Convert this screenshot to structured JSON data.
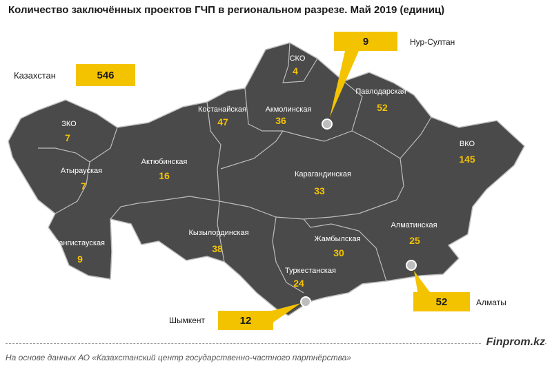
{
  "title": "Количество заключённых проектов ГЧП в региональном разрезе. Май 2019 (единиц)",
  "total": {
    "label": "Казахстан",
    "value": "546"
  },
  "regions": [
    {
      "name": "СКО",
      "value": "4"
    },
    {
      "name": "ЗКО",
      "value": "7"
    },
    {
      "name": "Костанайская",
      "value": "47"
    },
    {
      "name": "Акмолинская",
      "value": "36"
    },
    {
      "name": "Павлодарская",
      "value": "52"
    },
    {
      "name": "Атырауская",
      "value": "7"
    },
    {
      "name": "Актюбинская",
      "value": "16"
    },
    {
      "name": "ВКО",
      "value": "145"
    },
    {
      "name": "Карагандинская",
      "value": "33"
    },
    {
      "name": "Мангистауская",
      "value": "9"
    },
    {
      "name": "Кызылординская",
      "value": "38"
    },
    {
      "name": "Алматинская",
      "value": "25"
    },
    {
      "name": "Жамбылская",
      "value": "30"
    },
    {
      "name": "Туркестанская",
      "value": "24"
    }
  ],
  "cities": [
    {
      "name": "Нур-Султан",
      "value": "9"
    },
    {
      "name": "Алматы",
      "value": "52"
    },
    {
      "name": "Шымкент",
      "value": "12"
    }
  ],
  "footer": {
    "source": "На основе данных АО «Казахстанский центр государственно-частного партнёрства»",
    "brand": "Finprom.kz"
  },
  "colors": {
    "map_fill": "#4a4a4a",
    "border": "#bdbdbd",
    "accent": "#f4c300"
  }
}
